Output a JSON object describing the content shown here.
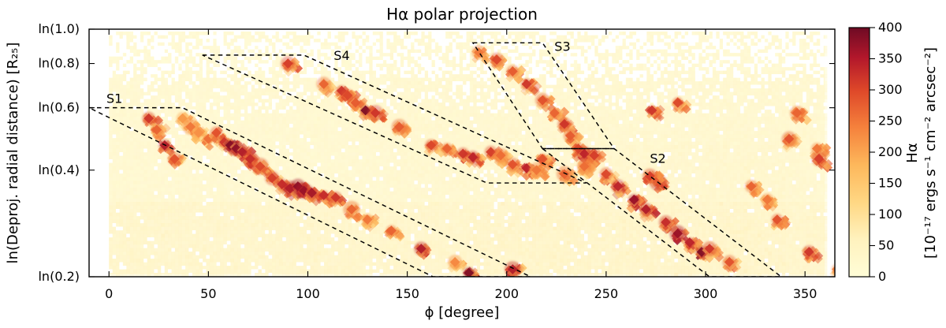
{
  "chart_data": {
    "type": "heatmap",
    "title": "Hα polar projection",
    "xlabel": "ϕ [degree]",
    "ylabel": "ln(Deproj. radial distance) [R₂₅]",
    "xlim": [
      -10,
      365
    ],
    "xticks": [
      0,
      50,
      100,
      150,
      200,
      250,
      300,
      350
    ],
    "xtick_labels": [
      "0",
      "50",
      "100",
      "150",
      "200",
      "250",
      "300",
      "350"
    ],
    "ylim_radius": [
      0.2,
      1.0
    ],
    "y_scale": "log",
    "yticks": [
      1.0,
      0.8,
      0.6,
      0.4,
      0.2
    ],
    "ytick_labels": [
      "ln(1.0)",
      "ln(0.8)",
      "ln(0.6)",
      "ln(0.4)",
      "ln(0.2)"
    ],
    "colorbar": {
      "label": "Hα",
      "units": "[10⁻¹⁷ ergs s⁻¹ cm⁻² arcsec⁻²]",
      "range": [
        0,
        400
      ],
      "ticks": [
        0,
        50,
        100,
        150,
        200,
        250,
        300,
        350,
        400
      ],
      "tick_labels": [
        "0",
        "50",
        "100",
        "150",
        "200",
        "250",
        "300",
        "350",
        "400"
      ]
    },
    "regions": [
      {
        "name": "S1",
        "vertices": [
          [
            -10,
            0.6
          ],
          [
            37,
            0.6
          ],
          [
            212,
            0.2
          ],
          [
            163,
            0.2
          ]
        ]
      },
      {
        "name": "S2",
        "vertices": [
          [
            218,
            0.46
          ],
          [
            254,
            0.46
          ],
          [
            338,
            0.2
          ],
          [
            302,
            0.2
          ]
        ]
      },
      {
        "name": "S3",
        "vertices": [
          [
            183,
            0.915
          ],
          [
            218,
            0.915
          ],
          [
            254,
            0.46
          ],
          [
            218,
            0.46
          ]
        ]
      },
      {
        "name": "S4",
        "vertices": [
          [
            47,
            0.845
          ],
          [
            98,
            0.845
          ],
          [
            240,
            0.368
          ],
          [
            190,
            0.368
          ]
        ]
      }
    ],
    "hotspots": [
      [
        20,
        0.56,
        330
      ],
      [
        24,
        0.52,
        280
      ],
      [
        28,
        0.47,
        360
      ],
      [
        33,
        0.43,
        300
      ],
      [
        37,
        0.56,
        220
      ],
      [
        41,
        0.53,
        260
      ],
      [
        45,
        0.51,
        230
      ],
      [
        50,
        0.49,
        270
      ],
      [
        54,
        0.51,
        300
      ],
      [
        58,
        0.48,
        330
      ],
      [
        61,
        0.47,
        400
      ],
      [
        64,
        0.46,
        390
      ],
      [
        67,
        0.45,
        360
      ],
      [
        71,
        0.43,
        340
      ],
      [
        76,
        0.41,
        310
      ],
      [
        82,
        0.38,
        320
      ],
      [
        87,
        0.365,
        340
      ],
      [
        91,
        0.355,
        360
      ],
      [
        95,
        0.36,
        390
      ],
      [
        98,
        0.35,
        380
      ],
      [
        102,
        0.345,
        370
      ],
      [
        108,
        0.34,
        340
      ],
      [
        114,
        0.335,
        330
      ],
      [
        122,
        0.31,
        280
      ],
      [
        130,
        0.29,
        260
      ],
      [
        142,
        0.27,
        280
      ],
      [
        157,
        0.24,
        360
      ],
      [
        174,
        0.22,
        240
      ],
      [
        181,
        0.205,
        400
      ],
      [
        203,
        0.21,
        360
      ],
      [
        90,
        0.8,
        320
      ],
      [
        108,
        0.7,
        280
      ],
      [
        117,
        0.67,
        330
      ],
      [
        120,
        0.65,
        310
      ],
      [
        124,
        0.62,
        290
      ],
      [
        129,
        0.59,
        400
      ],
      [
        134,
        0.58,
        330
      ],
      [
        146,
        0.53,
        290
      ],
      [
        162,
        0.47,
        310
      ],
      [
        170,
        0.46,
        280
      ],
      [
        178,
        0.445,
        330
      ],
      [
        183,
        0.435,
        350
      ],
      [
        192,
        0.45,
        320
      ],
      [
        197,
        0.44,
        270
      ],
      [
        203,
        0.415,
        300
      ],
      [
        210,
        0.405,
        350
      ],
      [
        218,
        0.43,
        300
      ],
      [
        186,
        0.86,
        260
      ],
      [
        195,
        0.82,
        310
      ],
      [
        203,
        0.76,
        290
      ],
      [
        210,
        0.7,
        330
      ],
      [
        218,
        0.63,
        300
      ],
      [
        224,
        0.58,
        280
      ],
      [
        229,
        0.54,
        330
      ],
      [
        232,
        0.5,
        290
      ],
      [
        236,
        0.46,
        310
      ],
      [
        239,
        0.445,
        350
      ],
      [
        244,
        0.44,
        320
      ],
      [
        240,
        0.41,
        280
      ],
      [
        250,
        0.39,
        310
      ],
      [
        256,
        0.36,
        350
      ],
      [
        264,
        0.33,
        380
      ],
      [
        270,
        0.31,
        360
      ],
      [
        276,
        0.37,
        350
      ],
      [
        272,
        0.385,
        320
      ],
      [
        280,
        0.285,
        340
      ],
      [
        286,
        0.265,
        380
      ],
      [
        292,
        0.25,
        350
      ],
      [
        298,
        0.235,
        400
      ],
      [
        302,
        0.24,
        330
      ],
      [
        312,
        0.22,
        300
      ],
      [
        323,
        0.36,
        280
      ],
      [
        331,
        0.33,
        260
      ],
      [
        336,
        0.29,
        300
      ],
      [
        352,
        0.235,
        330
      ],
      [
        366,
        0.21,
        250
      ],
      [
        273,
        0.59,
        330
      ],
      [
        286,
        0.62,
        310
      ],
      [
        346,
        0.58,
        280
      ],
      [
        342,
        0.49,
        300
      ],
      [
        356,
        0.46,
        260
      ],
      [
        357,
        0.43,
        320
      ],
      [
        215,
        0.4,
        260
      ],
      [
        229,
        0.39,
        280
      ],
      [
        239,
        0.41,
        270
      ]
    ]
  }
}
